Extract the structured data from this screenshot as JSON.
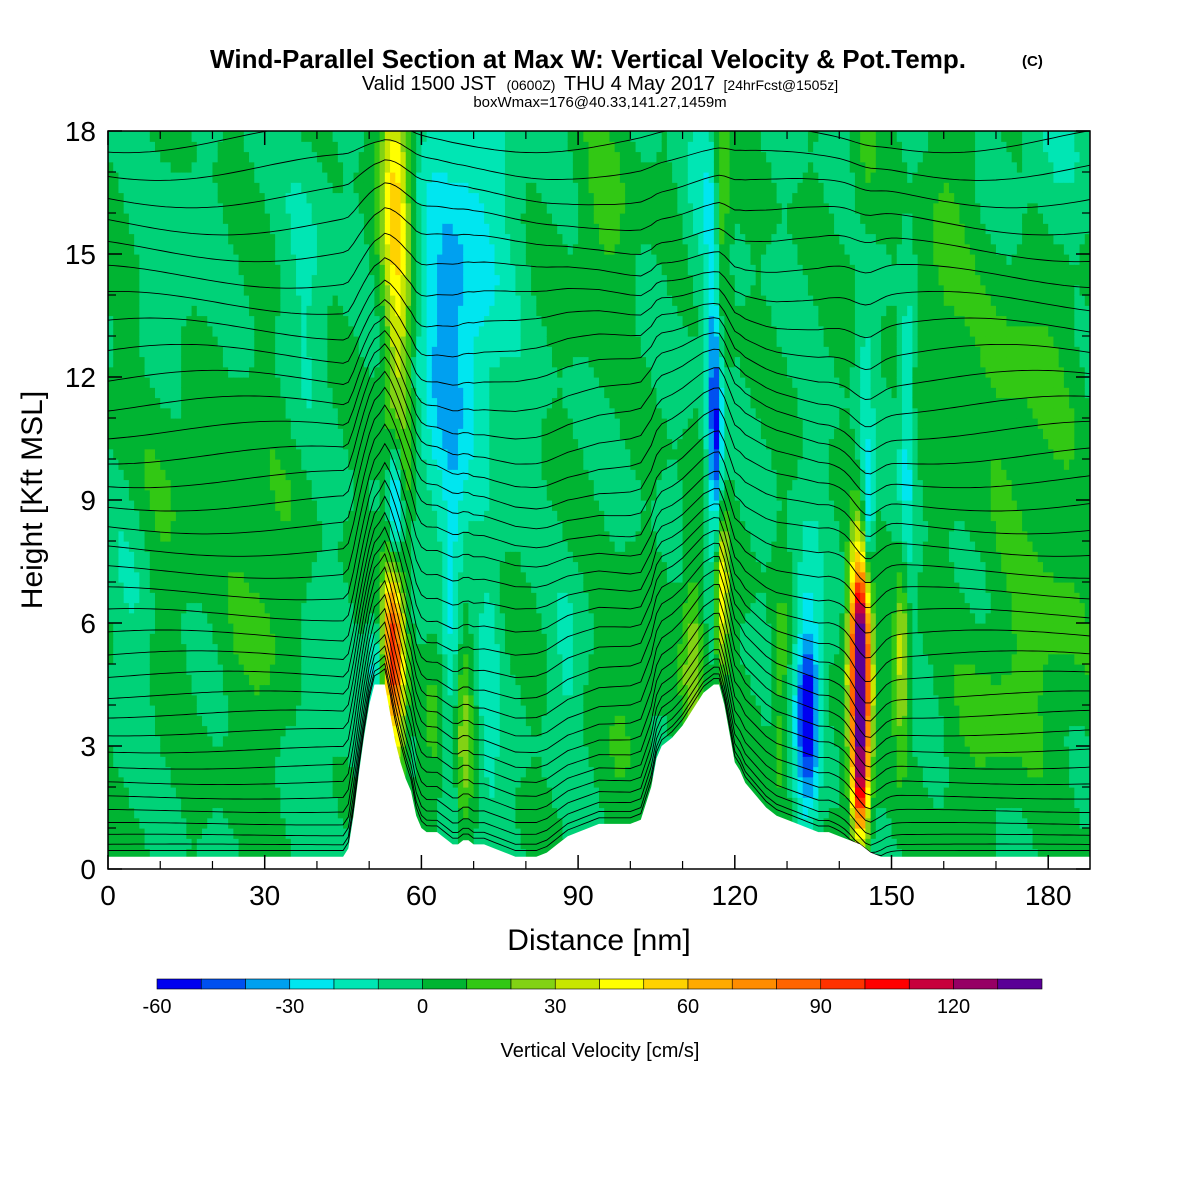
{
  "chart_data": {
    "type": "heatmap",
    "title": "Wind-Parallel Section at Max W: Vertical Velocity & Pot.Temp.",
    "title_mark": "(C)",
    "subtitle_main": "Valid 1500 JST",
    "subtitle_z": "(0600Z)",
    "subtitle_date": "THU 4 May 2017",
    "subtitle_fcst": "[24hrFcst@1505z]",
    "subtitle2": "boxWmax=176@40.33,141.27,1459m",
    "xlabel": "Distance [nm]",
    "ylabel": "Height [Kft MSL]",
    "xlim": [
      0,
      188
    ],
    "ylim": [
      0,
      18
    ],
    "xticks": [
      0,
      30,
      60,
      90,
      120,
      150,
      180
    ],
    "yticks": [
      0,
      3,
      6,
      9,
      12,
      15,
      18
    ],
    "background_w": 0,
    "colorbar": {
      "label": "Vertical Velocity [cm/s]",
      "ticks": [
        -60,
        -30,
        0,
        30,
        60,
        90,
        120
      ],
      "levels": [
        -60,
        -50,
        -40,
        -30,
        -20,
        -10,
        0,
        10,
        20,
        30,
        40,
        50,
        60,
        70,
        80,
        90,
        100,
        110,
        120,
        130,
        140
      ],
      "colors": [
        "#0000f0",
        "#0050f0",
        "#00a0f0",
        "#00e6f0",
        "#00e6b4",
        "#00d278",
        "#00b432",
        "#32c814",
        "#82d214",
        "#c8e600",
        "#ffff00",
        "#ffd200",
        "#ffaa00",
        "#ff8c00",
        "#ff6400",
        "#ff3200",
        "#ff0000",
        "#c8003c",
        "#960064",
        "#5a0096"
      ]
    },
    "terrain": {
      "x_nm": [
        0,
        45,
        46,
        47,
        48,
        49,
        50,
        51,
        52,
        53,
        54,
        55,
        56,
        57,
        58,
        59,
        60,
        61,
        62,
        63,
        64,
        65,
        66,
        67,
        68,
        69,
        70,
        72,
        74,
        76,
        78,
        80,
        82,
        84,
        86,
        88,
        90,
        92,
        94,
        96,
        98,
        100,
        102,
        104,
        105,
        106,
        108,
        110,
        112,
        114,
        116,
        117,
        118,
        119,
        120,
        121,
        122,
        124,
        126,
        128,
        130,
        132,
        134,
        136,
        138,
        140,
        142,
        144,
        146,
        148,
        150,
        152,
        154,
        156,
        158,
        160,
        188
      ],
      "height_kft": [
        0.3,
        0.3,
        0.5,
        1.3,
        2.3,
        3.2,
        4.0,
        4.5,
        4.5,
        4.5,
        3.8,
        3.1,
        2.6,
        2.2,
        1.9,
        1.3,
        1.0,
        0.9,
        0.9,
        0.9,
        0.8,
        0.7,
        0.6,
        0.6,
        0.7,
        0.7,
        0.6,
        0.6,
        0.5,
        0.4,
        0.3,
        0.3,
        0.3,
        0.4,
        0.6,
        0.8,
        0.9,
        1.0,
        1.1,
        1.1,
        1.1,
        1.1,
        1.2,
        2.0,
        2.7,
        3.0,
        3.2,
        3.5,
        3.9,
        4.3,
        4.5,
        4.5,
        4.0,
        3.3,
        2.6,
        2.4,
        2.1,
        1.8,
        1.5,
        1.3,
        1.2,
        1.1,
        1.0,
        0.9,
        0.9,
        0.8,
        0.7,
        0.6,
        0.4,
        0.3,
        0.3,
        0.3,
        0.3,
        0.3,
        0.3,
        0.3,
        0.3
      ]
    },
    "vv_features": [
      {
        "x": 55,
        "z": 13.5,
        "sx": 2.2,
        "sz": 5.0,
        "w": 45
      },
      {
        "x": 55,
        "z": 16.5,
        "sx": 1.8,
        "sz": 1.5,
        "w": 20
      },
      {
        "x": 54.5,
        "z": 5.6,
        "sx": 1.2,
        "sz": 1.6,
        "w": 75
      },
      {
        "x": 55.5,
        "z": 4.2,
        "sx": 1.0,
        "sz": 1.2,
        "w": 30
      },
      {
        "x": 55,
        "z": 8.8,
        "sx": 1.0,
        "sz": 1.3,
        "w": -60
      },
      {
        "x": 51,
        "z": 5.0,
        "sx": 1.0,
        "sz": 0.8,
        "w": -25
      },
      {
        "x": 53,
        "z": 11.5,
        "sx": 1.5,
        "sz": 3.0,
        "w": -15
      },
      {
        "x": 68,
        "z": 14.5,
        "sx": 6.0,
        "sz": 3.5,
        "w": -28
      },
      {
        "x": 63,
        "z": 11.0,
        "sx": 3.5,
        "sz": 3.0,
        "w": -15
      },
      {
        "x": 66,
        "z": 5.5,
        "sx": 1.3,
        "sz": 3.0,
        "w": -20
      },
      {
        "x": 68,
        "z": 3.5,
        "sx": 1.3,
        "sz": 2.0,
        "w": 25
      },
      {
        "x": 62,
        "z": 3.0,
        "sx": 1.5,
        "sz": 2.0,
        "w": 15
      },
      {
        "x": 73,
        "z": 3.5,
        "sx": 1.5,
        "sz": 3.0,
        "w": -15
      },
      {
        "x": 117,
        "z": 16.0,
        "sx": 1.2,
        "sz": 2.5,
        "w": 35
      },
      {
        "x": 117.5,
        "z": 6.8,
        "sx": 0.9,
        "sz": 1.3,
        "w": 55
      },
      {
        "x": 116,
        "z": 13.5,
        "sx": 1.1,
        "sz": 3.5,
        "w": -42
      },
      {
        "x": 116.5,
        "z": 10.0,
        "sx": 0.9,
        "sz": 1.8,
        "w": -30
      },
      {
        "x": 112,
        "z": 5.0,
        "sx": 1.5,
        "sz": 2.0,
        "w": 28
      },
      {
        "x": 113,
        "z": 16.5,
        "sx": 2.0,
        "sz": 2.0,
        "w": -12
      },
      {
        "x": 144,
        "z": 4.2,
        "sx": 1.3,
        "sz": 2.2,
        "w": 120
      },
      {
        "x": 144,
        "z": 5.6,
        "sx": 1.5,
        "sz": 1.6,
        "w": 60
      },
      {
        "x": 144,
        "z": 2.0,
        "sx": 1.0,
        "sz": 0.8,
        "w": 50
      },
      {
        "x": 134,
        "z": 3.7,
        "sx": 1.5,
        "sz": 1.5,
        "w": -45
      },
      {
        "x": 134,
        "z": 5.0,
        "sx": 2.0,
        "sz": 2.5,
        "w": -22
      },
      {
        "x": 129,
        "z": 4.2,
        "sx": 1.2,
        "sz": 2.0,
        "w": 18
      },
      {
        "x": 145.5,
        "z": 8.3,
        "sx": 0.8,
        "sz": 1.3,
        "w": -35
      },
      {
        "x": 145,
        "z": 13.0,
        "sx": 1.2,
        "sz": 3.5,
        "w": -15
      },
      {
        "x": 152,
        "z": 5.2,
        "sx": 1.0,
        "sz": 1.5,
        "w": 40
      },
      {
        "x": 153,
        "z": 10.5,
        "sx": 1.0,
        "sz": 3.0,
        "w": -22
      },
      {
        "x": 145,
        "z": 16.5,
        "sx": 1.5,
        "sz": 2.0,
        "w": 18
      },
      {
        "x": 168,
        "z": 3.5,
        "sx": 5.0,
        "sz": 1.5,
        "w": 12
      },
      {
        "x": 180,
        "z": 5.5,
        "sx": 6.0,
        "sz": 2.0,
        "w": 12
      },
      {
        "x": 175,
        "z": 12.0,
        "sx": 8.0,
        "sz": 3.0,
        "w": 12
      },
      {
        "x": 30,
        "z": 6.5,
        "sx": 5.0,
        "sz": 3.0,
        "w": 12
      },
      {
        "x": 10,
        "z": 10.0,
        "sx": 5.0,
        "sz": 3.0,
        "w": 12
      },
      {
        "x": 38,
        "z": 14.5,
        "sx": 3.0,
        "sz": 2.5,
        "w": -12
      },
      {
        "x": 12,
        "z": 14.0,
        "sx": 4.0,
        "sz": 2.0,
        "w": -12
      },
      {
        "x": 5,
        "z": 7.0,
        "sx": 3.0,
        "sz": 2.5,
        "w": -12
      },
      {
        "x": 40,
        "z": 4.0,
        "sx": 3.0,
        "sz": 2.0,
        "w": -12
      },
      {
        "x": 100,
        "z": 4.0,
        "sx": 3.0,
        "sz": 1.5,
        "w": 12
      },
      {
        "x": 88,
        "z": 5.0,
        "sx": 2.0,
        "sz": 1.5,
        "w": -12
      },
      {
        "x": 95,
        "z": 16.0,
        "sx": 4.0,
        "sz": 2.0,
        "w": 12
      },
      {
        "x": 180,
        "z": 17.0,
        "sx": 6.0,
        "sz": 1.5,
        "w": -12
      },
      {
        "x": 160,
        "z": 15.0,
        "sx": 3.0,
        "sz": 2.5,
        "w": 12
      }
    ],
    "theta_lines": {
      "count": 36,
      "top_kft": 18
    }
  }
}
